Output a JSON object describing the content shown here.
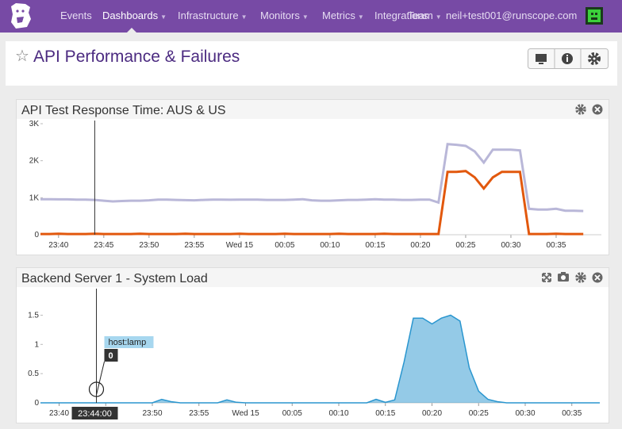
{
  "nav": {
    "items": [
      "Events",
      "Dashboards",
      "Infrastructure",
      "Monitors",
      "Metrics",
      "Integrations",
      "Team"
    ],
    "user": "neil+test001@runscope.com"
  },
  "dashboard": {
    "title": "API Performance & Failures"
  },
  "chart_data": [
    {
      "type": "line",
      "title": "API Test Response Time: AUS & US",
      "x": [
        "23:38",
        "23:39",
        "23:40",
        "23:41",
        "23:42",
        "23:43",
        "23:44",
        "23:45",
        "23:46",
        "23:47",
        "23:48",
        "23:49",
        "23:50",
        "23:51",
        "23:52",
        "23:53",
        "23:54",
        "23:55",
        "23:56",
        "23:57",
        "23:58",
        "23:59",
        "00:00",
        "00:01",
        "00:02",
        "00:03",
        "00:04",
        "00:05",
        "00:06",
        "00:07",
        "00:08",
        "00:09",
        "00:10",
        "00:11",
        "00:12",
        "00:13",
        "00:14",
        "00:15",
        "00:16",
        "00:17",
        "00:18",
        "00:19",
        "00:20",
        "00:21",
        "00:22",
        "00:23",
        "00:24",
        "00:25",
        "00:26",
        "00:27",
        "00:28",
        "00:29",
        "00:30",
        "00:31",
        "00:32",
        "00:33",
        "00:34",
        "00:35",
        "00:36",
        "00:37",
        "00:38"
      ],
      "series": [
        {
          "color": "#b9b7d8",
          "values": [
            960,
            960,
            955,
            955,
            950,
            950,
            940,
            920,
            900,
            910,
            920,
            920,
            930,
            950,
            950,
            940,
            935,
            930,
            940,
            950,
            950,
            945,
            950,
            950,
            950,
            940,
            940,
            940,
            950,
            960,
            930,
            920,
            920,
            930,
            940,
            940,
            950,
            960,
            950,
            950,
            940,
            940,
            950,
            950,
            870,
            2450,
            2430,
            2400,
            2250,
            1950,
            2300,
            2300,
            2300,
            2280,
            700,
            680,
            680,
            700,
            650,
            650,
            640
          ]
        },
        {
          "color": "#e2580d",
          "values": [
            20,
            20,
            25,
            20,
            20,
            20,
            25,
            20,
            20,
            20,
            20,
            25,
            20,
            20,
            20,
            20,
            25,
            20,
            20,
            20,
            20,
            20,
            25,
            20,
            20,
            20,
            20,
            25,
            20,
            20,
            20,
            20,
            20,
            25,
            20,
            20,
            20,
            20,
            25,
            20,
            20,
            20,
            20,
            20,
            20,
            1700,
            1700,
            1720,
            1550,
            1250,
            1550,
            1700,
            1700,
            1700,
            20,
            20,
            20,
            25,
            20,
            20,
            20
          ]
        }
      ],
      "xlim": [
        "23:38",
        "00:40"
      ],
      "xticks": [
        "23:40",
        "23:45",
        "23:50",
        "23:55",
        {
          "value": "00:00",
          "label": "Wed 15"
        },
        "00:05",
        "00:10",
        "00:15",
        "00:20",
        "00:25",
        "00:30",
        "00:35"
      ],
      "ylim": [
        0,
        3000
      ],
      "yticks": [
        0,
        {
          "value": 1000,
          "label": "1K"
        },
        {
          "value": 2000,
          "label": "2K"
        },
        {
          "value": 3000,
          "label": "3K"
        }
      ]
    },
    {
      "type": "area",
      "title": "Backend Server 1 - System Load",
      "x": [
        "23:38",
        "23:39",
        "23:40",
        "23:41",
        "23:42",
        "23:43",
        "23:44",
        "23:45",
        "23:46",
        "23:47",
        "23:48",
        "23:49",
        "23:50",
        "23:51",
        "23:52",
        "23:53",
        "23:54",
        "23:55",
        "23:56",
        "23:57",
        "23:58",
        "23:59",
        "00:00",
        "00:01",
        "00:02",
        "00:03",
        "00:04",
        "00:05",
        "00:06",
        "00:07",
        "00:08",
        "00:09",
        "00:10",
        "00:11",
        "00:12",
        "00:13",
        "00:14",
        "00:15",
        "00:16",
        "00:17",
        "00:18",
        "00:19",
        "00:20",
        "00:21",
        "00:22",
        "00:23",
        "00:24",
        "00:25",
        "00:26",
        "00:27",
        "00:28",
        "00:29",
        "00:30",
        "00:31",
        "00:32",
        "00:33",
        "00:34",
        "00:35",
        "00:36",
        "00:37",
        "00:38"
      ],
      "series": [
        {
          "name": "host:lamp",
          "color": "#2a96cf",
          "values": [
            0,
            0,
            0,
            0,
            0,
            0,
            0,
            0,
            0,
            0,
            0,
            0,
            0,
            0.06,
            0.02,
            0,
            0,
            0,
            0,
            0,
            0.05,
            0.01,
            0,
            0,
            0,
            0,
            0,
            0,
            0,
            0,
            0,
            0,
            0,
            0,
            0,
            0,
            0.06,
            0.01,
            0.05,
            0.7,
            1.45,
            1.45,
            1.35,
            1.45,
            1.5,
            1.4,
            0.6,
            0.2,
            0.06,
            0.02,
            0,
            0,
            0,
            0,
            0,
            0,
            0,
            0,
            0,
            0,
            0
          ]
        }
      ],
      "xlim": [
        "23:38",
        "00:38"
      ],
      "xticks": [
        "23:40",
        "23:45",
        "23:50",
        "23:55",
        {
          "value": "00:00",
          "label": "Wed 15"
        },
        "00:05",
        "00:10",
        "00:15",
        "00:20",
        "00:25",
        "00:30",
        "00:35"
      ],
      "ylim": [
        0,
        1.9
      ],
      "yticks": [
        0,
        0.5,
        1,
        1.5
      ],
      "tooltip": {
        "time": "23:44:00",
        "value": 0
      }
    }
  ]
}
